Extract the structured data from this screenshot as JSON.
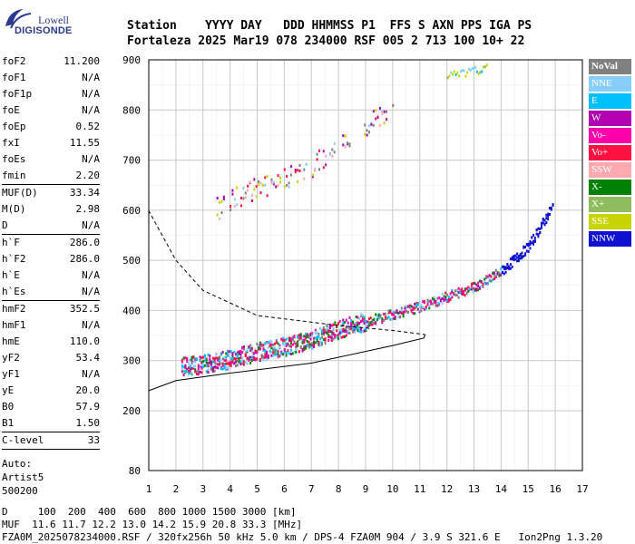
{
  "logo": {
    "line1": "Lowell",
    "line2": "DIGISONDE"
  },
  "header": {
    "row1": "Station    YYYY DAY   DDD HHMMSS P1  FFS S AXN PPS IGA PS",
    "row2": "Fortaleza 2025 Mar19 078 234000 RSF 005 2 713 100 10+ 22"
  },
  "params": {
    "g1": [
      {
        "k": "foF2",
        "v": "11.200"
      },
      {
        "k": "foF1",
        "v": "N/A"
      },
      {
        "k": "foF1p",
        "v": "N/A"
      },
      {
        "k": "foE",
        "v": "N/A"
      },
      {
        "k": "foEp",
        "v": "0.52"
      },
      {
        "k": "fxI",
        "v": "11.55"
      },
      {
        "k": "foEs",
        "v": "N/A"
      },
      {
        "k": "fmin",
        "v": "2.20"
      }
    ],
    "g2": [
      {
        "k": "MUF(D)",
        "v": "33.34"
      },
      {
        "k": "M(D)",
        "v": "2.98"
      },
      {
        "k": "D",
        "v": "N/A"
      }
    ],
    "g3": [
      {
        "k": "h`F",
        "v": "286.0"
      },
      {
        "k": "h`F2",
        "v": "286.0"
      },
      {
        "k": "h`E",
        "v": "N/A"
      },
      {
        "k": "h`Es",
        "v": "N/A"
      }
    ],
    "g4": [
      {
        "k": "hmF2",
        "v": "352.5"
      },
      {
        "k": "hmF1",
        "v": "N/A"
      },
      {
        "k": "hmE",
        "v": "110.0"
      },
      {
        "k": "yF2",
        "v": "53.4"
      },
      {
        "k": "yF1",
        "v": "N/A"
      },
      {
        "k": "yE",
        "v": "20.0"
      },
      {
        "k": "B0",
        "v": "57.9"
      },
      {
        "k": "B1",
        "v": "1.50"
      }
    ],
    "clevel": {
      "k": "C-level",
      "v": "33"
    },
    "auto": [
      "Auto:",
      "Artist5",
      "500200"
    ]
  },
  "legend": [
    {
      "label": "NoVal",
      "color": "#808080"
    },
    {
      "label": "NNE",
      "color": "#87cefa"
    },
    {
      "label": "E",
      "color": "#00bfff"
    },
    {
      "label": "W",
      "color": "#b000b0"
    },
    {
      "label": "Vo-",
      "color": "#ff00aa"
    },
    {
      "label": "Vo+",
      "color": "#ff1040"
    },
    {
      "label": "SSW",
      "color": "#ffa8b0"
    },
    {
      "label": "X-",
      "color": "#008000"
    },
    {
      "label": "X+",
      "color": "#8fbc5f"
    },
    {
      "label": "SSE",
      "color": "#c8d400"
    },
    {
      "label": "NNW",
      "color": "#1010d0"
    }
  ],
  "footer": {
    "line1": "D     100  200  400  600  800 1000 1500 3000 [km]",
    "line2": "MUF  11.6 11.7 12.2 13.0 14.2 15.9 20.8 33.3 [MHz]",
    "line3": "FZA0M_2025078234000.RSF / 320fx256h 50 kHz 5.0 km / DPS-4 FZA0M 904 / 3.9 S 321.6 E   Ion2Png 1.3.20"
  },
  "chart_data": {
    "type": "scatter",
    "xlim": [
      1,
      17
    ],
    "ylim": [
      80,
      900
    ],
    "x_ticks": [
      1,
      2,
      3,
      4,
      5,
      6,
      7,
      8,
      9,
      10,
      11,
      12,
      13,
      14,
      15,
      16,
      17
    ],
    "y_ticks": [
      80,
      200,
      300,
      400,
      500,
      600,
      700,
      800,
      900
    ],
    "grid": true,
    "series": [
      {
        "name": "O-trace F2",
        "points": [
          [
            2.2,
            290
          ],
          [
            3,
            295
          ],
          [
            4,
            305
          ],
          [
            5,
            320
          ],
          [
            6,
            330
          ],
          [
            7,
            345
          ],
          [
            8,
            365
          ],
          [
            9,
            380
          ],
          [
            10,
            395
          ],
          [
            11,
            410
          ],
          [
            12,
            430
          ],
          [
            13,
            450
          ],
          [
            14,
            480
          ],
          [
            15,
            530
          ],
          [
            15.9,
            610
          ]
        ]
      },
      {
        "name": "X-trace F2 upper",
        "points": [
          [
            3.5,
            605
          ],
          [
            4.5,
            635
          ],
          [
            6,
            665
          ],
          [
            7,
            690
          ],
          [
            8,
            730
          ],
          [
            9,
            770
          ],
          [
            10,
            810
          ]
        ]
      },
      {
        "name": "NNE/E",
        "points": [
          [
            12,
            870
          ],
          [
            12.5,
            875
          ],
          [
            13,
            880
          ],
          [
            13.5,
            885
          ]
        ]
      },
      {
        "name": "Profile",
        "points": [
          [
            0.99,
            600
          ],
          [
            2,
            500
          ],
          [
            3,
            440
          ],
          [
            5,
            390
          ],
          [
            8,
            370
          ],
          [
            10,
            360
          ],
          [
            11.2,
            352
          ],
          [
            11.15,
            345
          ],
          [
            10,
            330
          ],
          [
            7,
            295
          ],
          [
            4,
            275
          ],
          [
            2,
            260
          ],
          [
            1,
            240
          ]
        ]
      }
    ]
  }
}
